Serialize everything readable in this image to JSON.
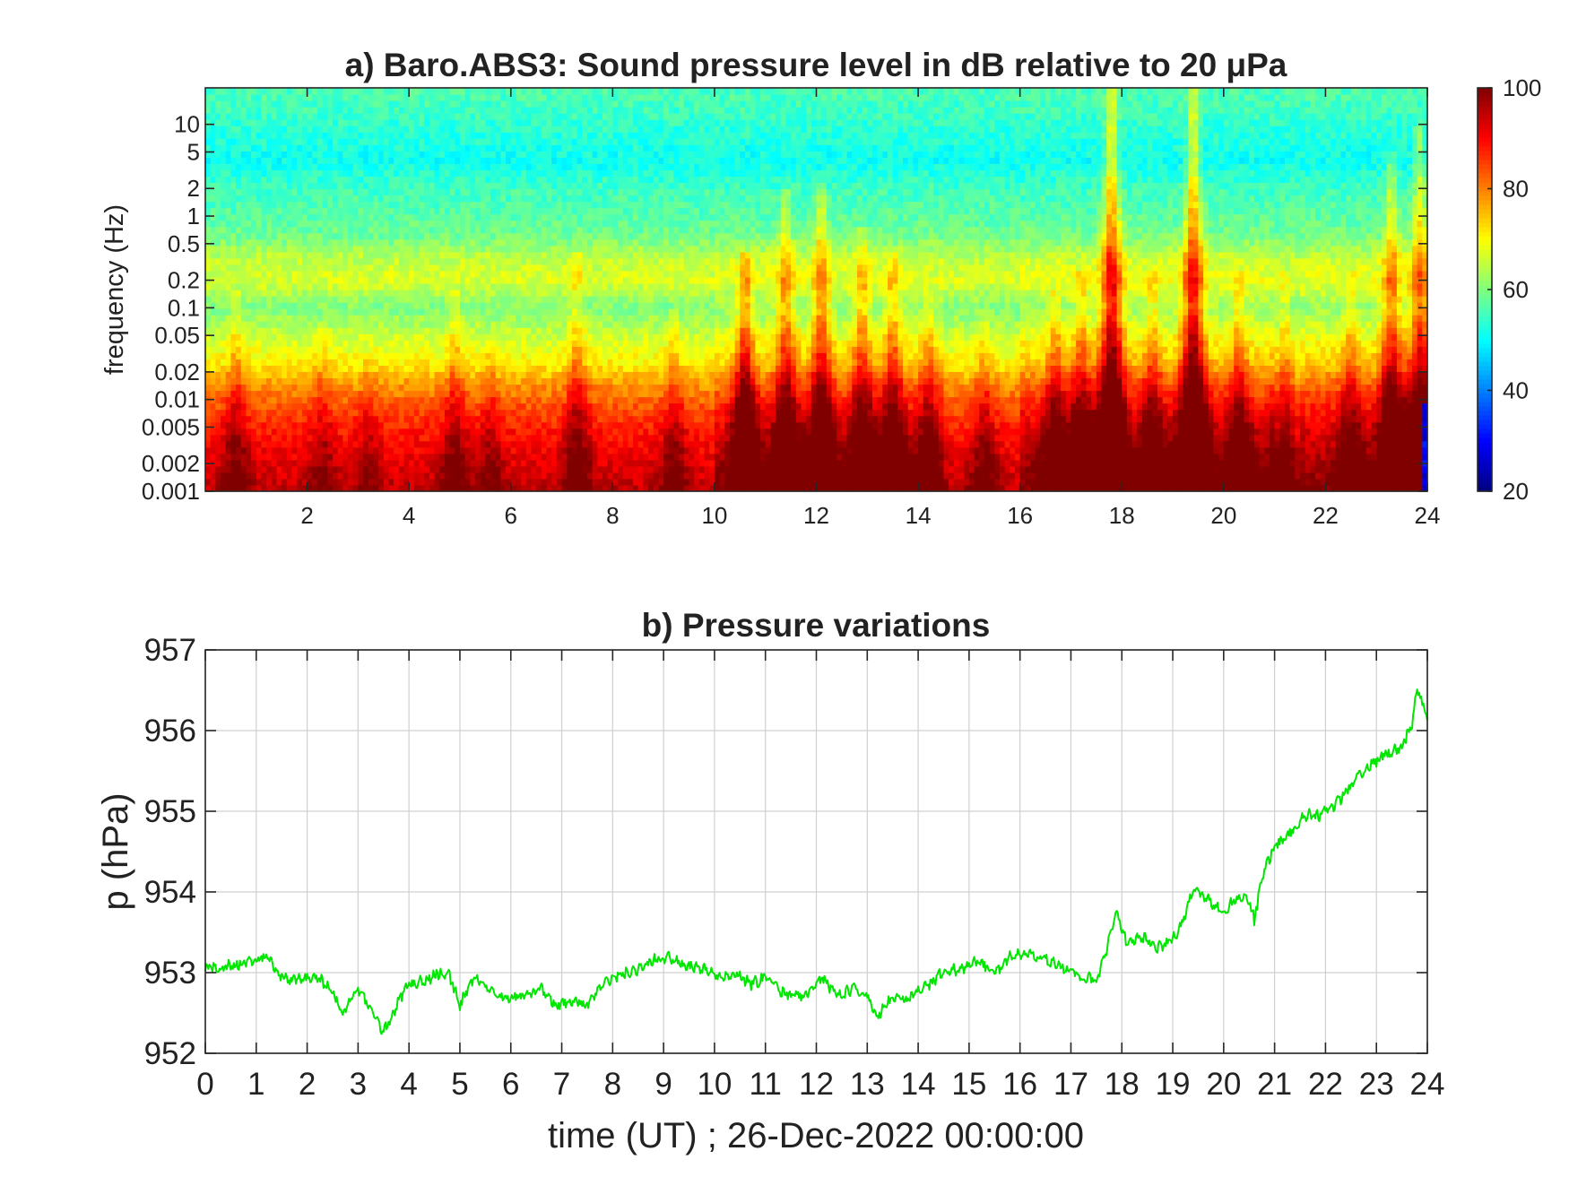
{
  "chart_data": [
    {
      "type": "heatmap",
      "title": "a) Baro.ABS3: Sound pressure level in dB relative to 20 μPa",
      "xlabel": "",
      "ylabel": "frequency (Hz)",
      "x_range": [
        0,
        24
      ],
      "x_ticks": [
        2,
        4,
        6,
        8,
        10,
        12,
        14,
        16,
        18,
        20,
        22,
        24
      ],
      "y_scale": "log",
      "y_range": [
        0.001,
        25
      ],
      "y_ticks": [
        0.001,
        0.002,
        0.005,
        0.01,
        0.02,
        0.05,
        0.1,
        0.2,
        0.5,
        1,
        2,
        5,
        10
      ],
      "y_tick_labels": [
        "0.001",
        "0.002",
        "0.005",
        "0.01",
        "0.02",
        "0.05",
        "0.1",
        "0.2",
        "0.5",
        "1",
        "2",
        "5",
        "10"
      ],
      "colorbar": {
        "range": [
          20,
          100
        ],
        "ticks": [
          20,
          40,
          60,
          80,
          100
        ],
        "colormap": "jet"
      },
      "background_level_db": {
        "freq_hz": [
          0.001,
          0.002,
          0.004,
          0.008,
          0.015,
          0.025,
          0.05,
          0.1,
          0.2,
          0.35,
          0.6,
          1,
          2,
          4,
          8,
          15,
          25
        ],
        "db": [
          95,
          92,
          89,
          84,
          78,
          71,
          66,
          60,
          67,
          65,
          59,
          57,
          55,
          51,
          53,
          55,
          56
        ]
      },
      "events": [
        {
          "t": 0.6,
          "amp": 10,
          "height": 0.45
        },
        {
          "t": 2.3,
          "amp": 7,
          "height": 0.35
        },
        {
          "t": 3.2,
          "amp": 6,
          "height": 0.3
        },
        {
          "t": 4.9,
          "amp": 10,
          "height": 0.45
        },
        {
          "t": 5.6,
          "amp": 8,
          "height": 0.3
        },
        {
          "t": 7.3,
          "amp": 12,
          "height": 0.55
        },
        {
          "t": 9.2,
          "amp": 9,
          "height": 0.4
        },
        {
          "t": 10.6,
          "amp": 26,
          "height": 0.55
        },
        {
          "t": 11.4,
          "amp": 20,
          "height": 0.7
        },
        {
          "t": 12.1,
          "amp": 22,
          "height": 0.72
        },
        {
          "t": 12.9,
          "amp": 18,
          "height": 0.6
        },
        {
          "t": 13.5,
          "amp": 18,
          "height": 0.55
        },
        {
          "t": 14.2,
          "amp": 12,
          "height": 0.45
        },
        {
          "t": 15.3,
          "amp": 10,
          "height": 0.4
        },
        {
          "t": 16.7,
          "amp": 14,
          "height": 0.45
        },
        {
          "t": 17.2,
          "amp": 16,
          "height": 0.5
        },
        {
          "t": 17.8,
          "amp": 32,
          "height": 0.98
        },
        {
          "t": 18.6,
          "amp": 14,
          "height": 0.5
        },
        {
          "t": 19.4,
          "amp": 32,
          "height": 0.95
        },
        {
          "t": 20.3,
          "amp": 14,
          "height": 0.5
        },
        {
          "t": 21.2,
          "amp": 12,
          "height": 0.5
        },
        {
          "t": 22.5,
          "amp": 12,
          "height": 0.5
        },
        {
          "t": 23.3,
          "amp": 22,
          "height": 0.8
        },
        {
          "t": 23.85,
          "amp": 24,
          "height": 0.85
        }
      ]
    },
    {
      "type": "line",
      "title": "b) Pressure variations",
      "xlabel": "time (UT) ; 26-Dec-2022 00:00:00",
      "ylabel": "p (hPa)",
      "xlim": [
        0,
        24
      ],
      "ylim": [
        952,
        957
      ],
      "x_ticks": [
        0,
        1,
        2,
        3,
        4,
        5,
        6,
        7,
        8,
        9,
        10,
        11,
        12,
        13,
        14,
        15,
        16,
        17,
        18,
        19,
        20,
        21,
        22,
        23,
        24
      ],
      "y_ticks": [
        952,
        953,
        954,
        955,
        956,
        957
      ],
      "grid": true,
      "series": [
        {
          "name": "",
          "color": "#00e600",
          "x": [
            0,
            0.3,
            0.6,
            1.0,
            1.2,
            1.5,
            1.8,
            2.2,
            2.5,
            2.7,
            3.0,
            3.2,
            3.5,
            3.8,
            4.0,
            4.3,
            4.6,
            4.8,
            5.0,
            5.3,
            5.6,
            6.0,
            6.3,
            6.6,
            6.9,
            7.2,
            7.5,
            7.8,
            8.1,
            8.5,
            8.8,
            9.1,
            9.4,
            9.8,
            10.1,
            10.4,
            10.7,
            11.0,
            11.3,
            11.6,
            11.9,
            12.1,
            12.4,
            12.7,
            13.0,
            13.2,
            13.5,
            13.8,
            14.1,
            14.5,
            14.9,
            15.2,
            15.5,
            15.8,
            16.1,
            16.5,
            16.9,
            17.2,
            17.5,
            17.7,
            17.9,
            18.1,
            18.4,
            18.7,
            19.0,
            19.2,
            19.4,
            19.7,
            20.0,
            20.3,
            20.5,
            20.6,
            20.8,
            21.0,
            21.3,
            21.6,
            21.9,
            22.3,
            22.6,
            22.9,
            23.2,
            23.5,
            23.7,
            23.8,
            23.9,
            24.0
          ],
          "y": [
            953.05,
            953.05,
            953.1,
            953.15,
            953.2,
            952.95,
            952.9,
            952.95,
            952.75,
            952.5,
            952.8,
            952.6,
            952.25,
            952.65,
            952.85,
            952.9,
            953.0,
            952.95,
            952.6,
            952.95,
            952.75,
            952.7,
            952.7,
            952.8,
            952.6,
            952.65,
            952.6,
            952.85,
            952.95,
            953.05,
            953.15,
            953.2,
            953.1,
            953.05,
            952.95,
            953.0,
            952.85,
            952.95,
            952.75,
            952.7,
            952.75,
            952.95,
            952.7,
            952.8,
            952.7,
            952.45,
            952.7,
            952.65,
            952.8,
            953.0,
            953.05,
            953.15,
            953.0,
            953.2,
            953.25,
            953.15,
            953.05,
            952.95,
            952.9,
            953.3,
            953.75,
            953.35,
            953.45,
            953.3,
            953.4,
            953.65,
            954.05,
            953.9,
            953.75,
            953.95,
            953.9,
            953.65,
            954.3,
            954.55,
            954.75,
            954.95,
            954.95,
            955.15,
            955.4,
            955.6,
            955.7,
            955.8,
            956.1,
            956.55,
            956.35,
            956.2
          ]
        }
      ]
    }
  ]
}
